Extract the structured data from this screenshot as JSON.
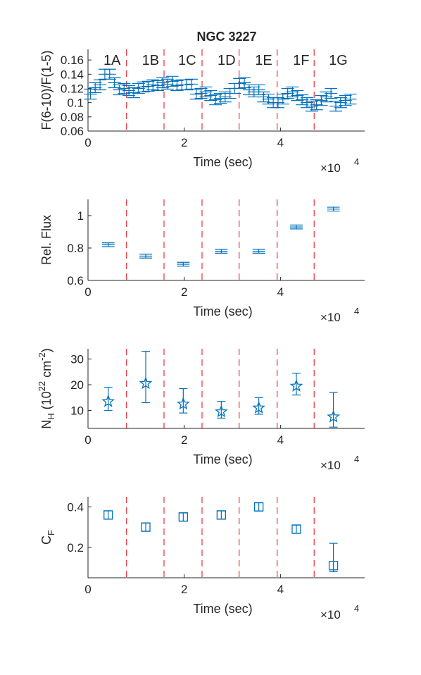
{
  "title": "NGC 3227",
  "colors": {
    "data": "#0072BD",
    "divider": "#E8303A",
    "axis": "#262626"
  },
  "dividers_x": [
    0.8,
    1.58,
    2.37,
    3.14,
    3.93,
    4.7
  ],
  "segment_labels": [
    {
      "text": "1A",
      "x": 0.5
    },
    {
      "text": "1B",
      "x": 1.3
    },
    {
      "text": "1C",
      "x": 2.06
    },
    {
      "text": "1D",
      "x": 2.88
    },
    {
      "text": "1E",
      "x": 3.65
    },
    {
      "text": "1F",
      "x": 4.43
    },
    {
      "text": "1G",
      "x": 5.2
    }
  ],
  "chart_data": [
    {
      "type": "scatter",
      "name": "hardness-ratio",
      "xlabel": "Time (sec)",
      "ylabel": "F(6-10)/F(1-5)",
      "x_multiplier": "×10",
      "x_multiplier_exp": "4",
      "xlim": [
        0,
        5.75
      ],
      "ylim": [
        0.06,
        0.175
      ],
      "xticks": [
        0,
        2,
        4
      ],
      "yticks": [
        0.06,
        0.08,
        0.1,
        0.12,
        0.14,
        0.16
      ],
      "ytick_labels": [
        "0.06",
        "0.08",
        "0.1",
        "0.12",
        "0.14",
        "0.16"
      ],
      "marker": "plus",
      "x": [
        0.05,
        0.15,
        0.25,
        0.35,
        0.45,
        0.55,
        0.65,
        0.75,
        0.85,
        0.95,
        1.05,
        1.15,
        1.25,
        1.35,
        1.45,
        1.55,
        1.65,
        1.75,
        1.85,
        1.95,
        2.05,
        2.15,
        2.25,
        2.35,
        2.45,
        2.55,
        2.65,
        2.75,
        2.85,
        2.95,
        3.05,
        3.15,
        3.25,
        3.35,
        3.45,
        3.55,
        3.65,
        3.75,
        3.85,
        3.95,
        4.05,
        4.15,
        4.25,
        4.35,
        4.45,
        4.55,
        4.65,
        4.75,
        4.85,
        4.95,
        5.05,
        5.15,
        5.25,
        5.35,
        5.45
      ],
      "y": [
        0.112,
        0.121,
        0.125,
        0.14,
        0.14,
        0.128,
        0.118,
        0.12,
        0.117,
        0.114,
        0.12,
        0.122,
        0.123,
        0.125,
        0.124,
        0.128,
        0.126,
        0.13,
        0.124,
        0.125,
        0.125,
        0.126,
        0.112,
        0.113,
        0.115,
        0.11,
        0.104,
        0.106,
        0.108,
        0.113,
        0.12,
        0.127,
        0.128,
        0.118,
        0.115,
        0.118,
        0.108,
        0.105,
        0.1,
        0.1,
        0.105,
        0.113,
        0.115,
        0.11,
        0.104,
        0.1,
        0.095,
        0.097,
        0.103,
        0.108,
        0.113,
        0.095,
        0.1,
        0.103,
        0.105
      ],
      "yerr": [
        0.007,
        0.007,
        0.007,
        0.007,
        0.007,
        0.007,
        0.007,
        0.007,
        0.007,
        0.007,
        0.007,
        0.007,
        0.007,
        0.007,
        0.007,
        0.007,
        0.007,
        0.007,
        0.007,
        0.007,
        0.007,
        0.007,
        0.007,
        0.007,
        0.007,
        0.007,
        0.007,
        0.007,
        0.007,
        0.007,
        0.007,
        0.007,
        0.007,
        0.007,
        0.007,
        0.007,
        0.007,
        0.007,
        0.007,
        0.007,
        0.007,
        0.007,
        0.007,
        0.007,
        0.007,
        0.007,
        0.007,
        0.007,
        0.007,
        0.007,
        0.007,
        0.007,
        0.007,
        0.007,
        0.007
      ]
    },
    {
      "type": "scatter",
      "name": "relative-flux",
      "xlabel": "Time (sec)",
      "ylabel": "Rel. Flux",
      "x_multiplier": "×10",
      "x_multiplier_exp": "4",
      "xlim": [
        0,
        5.75
      ],
      "ylim": [
        0.6,
        1.1
      ],
      "xticks": [
        0,
        2,
        4
      ],
      "yticks": [
        0.6,
        0.8,
        1
      ],
      "ytick_labels": [
        "0.6",
        "0.8",
        "1"
      ],
      "marker": "plus",
      "x": [
        0.42,
        1.2,
        1.98,
        2.77,
        3.55,
        4.33,
        5.1
      ],
      "y": [
        0.82,
        0.75,
        0.7,
        0.78,
        0.78,
        0.93,
        1.04
      ],
      "yerr": [
        0.012,
        0.012,
        0.012,
        0.012,
        0.012,
        0.012,
        0.012
      ]
    },
    {
      "type": "scatter",
      "name": "column-density",
      "xlabel": "Time (sec)",
      "ylabel": "N_H (10^22 cm^-2)",
      "ylabel_parts": {
        "main": "N",
        "sub": "H",
        "open": " (10",
        "sup1": "22",
        "mid": " cm",
        "sup2": "-2",
        "close": ")"
      },
      "x_multiplier": "×10",
      "x_multiplier_exp": "4",
      "xlim": [
        0,
        5.75
      ],
      "ylim": [
        3,
        34
      ],
      "xticks": [
        0,
        2,
        4
      ],
      "yticks": [
        10,
        20,
        30
      ],
      "ytick_labels": [
        "10",
        "20",
        "30"
      ],
      "marker": "pentagram",
      "x": [
        0.42,
        1.2,
        1.98,
        2.77,
        3.55,
        4.33,
        5.1
      ],
      "y": [
        13.5,
        20.5,
        12.5,
        9.5,
        11,
        19.5,
        7.5
      ],
      "yerr_low": [
        3.5,
        7.5,
        3.5,
        2.5,
        2.5,
        3.5,
        4
      ],
      "yerr_high": [
        5.5,
        12.5,
        6,
        4,
        4,
        5,
        9.5
      ]
    },
    {
      "type": "scatter",
      "name": "covering-fraction",
      "xlabel": "Time (sec)",
      "ylabel": "C_F",
      "ylabel_parts": {
        "main": "C",
        "sub": "F"
      },
      "x_multiplier": "×10",
      "x_multiplier_exp": "4",
      "xlim": [
        0,
        5.75
      ],
      "ylim": [
        0.05,
        0.45
      ],
      "xticks": [
        0,
        2,
        4
      ],
      "yticks": [
        0.2,
        0.4
      ],
      "ytick_labels": [
        "0.2",
        "0.4"
      ],
      "marker": "square",
      "x": [
        0.42,
        1.2,
        1.98,
        2.77,
        3.55,
        4.33,
        5.1
      ],
      "y": [
        0.36,
        0.3,
        0.35,
        0.36,
        0.4,
        0.29,
        0.11
      ],
      "yerr_low": [
        0.02,
        0.02,
        0.02,
        0.02,
        0.02,
        0.02,
        0.03
      ],
      "yerr_high": [
        0.02,
        0.02,
        0.02,
        0.02,
        0.02,
        0.02,
        0.11
      ]
    }
  ]
}
